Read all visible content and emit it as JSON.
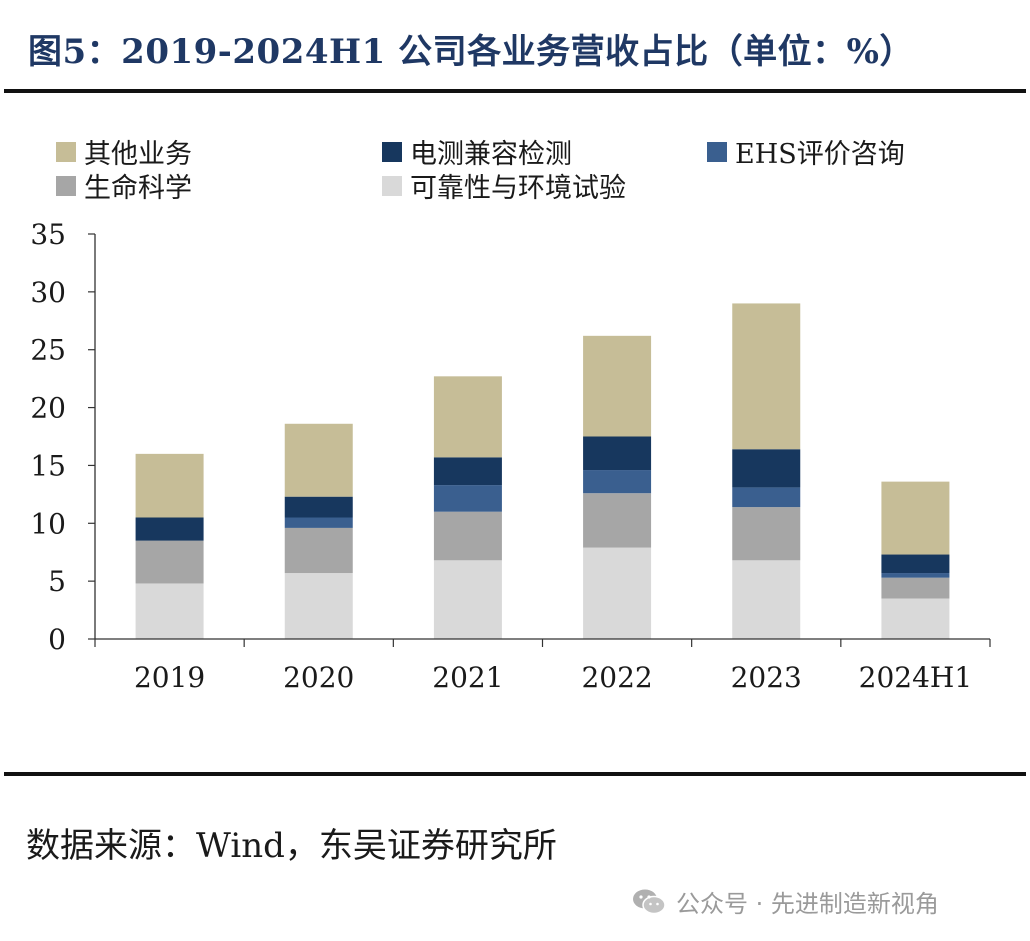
{
  "title": "图5：2019-2024H1 公司各业务营收占比（单位：%）",
  "source": "数据来源：Wind，东吴证券研究所",
  "watermark": "公众号 · 先进制造新视角",
  "chart_data": {
    "type": "bar",
    "stacked": true,
    "categories": [
      "2019",
      "2020",
      "2021",
      "2022",
      "2023",
      "2024H1"
    ],
    "ylim": [
      0,
      35
    ],
    "yticks": [
      0,
      5,
      10,
      15,
      20,
      25,
      30,
      35
    ],
    "legend_position": "top",
    "series": [
      {
        "name": "可靠性与环境试验",
        "color": "#d9d9d9",
        "values": [
          4.8,
          5.7,
          6.8,
          7.9,
          6.8,
          3.5
        ]
      },
      {
        "name": "生命科学",
        "color": "#a6a6a6",
        "values": [
          3.7,
          3.9,
          4.2,
          4.7,
          4.6,
          1.8
        ]
      },
      {
        "name": "EHS评价咨询",
        "color": "#3a5f8f",
        "values": [
          0.0,
          0.9,
          2.3,
          2.0,
          1.7,
          0.4
        ]
      },
      {
        "name": "电测兼容检测",
        "color": "#17375e",
        "values": [
          2.0,
          1.8,
          2.4,
          2.9,
          3.3,
          1.6
        ]
      },
      {
        "name": "其他业务",
        "color": "#c6bd97",
        "values": [
          5.5,
          6.3,
          7.0,
          8.7,
          12.6,
          6.3
        ]
      }
    ]
  },
  "legend": [
    {
      "label": "其他业务",
      "color": "#c6bd97"
    },
    {
      "label": "电测兼容检测",
      "color": "#17375e"
    },
    {
      "label": "EHS评价咨询",
      "color": "#3a5f8f"
    },
    {
      "label": "生命科学",
      "color": "#a6a6a6"
    },
    {
      "label": "可靠性与环境试验",
      "color": "#d9d9d9"
    }
  ]
}
